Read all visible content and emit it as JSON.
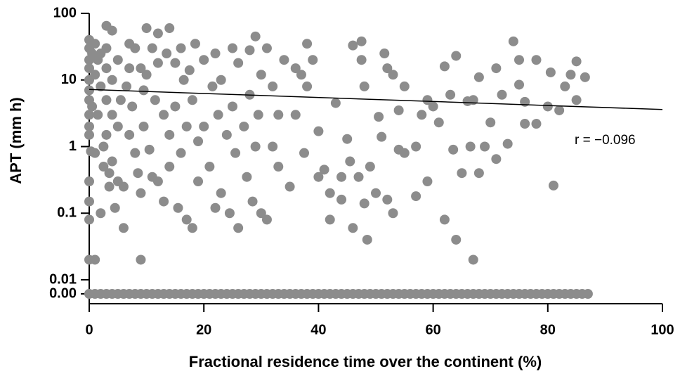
{
  "chart_data": {
    "type": "scatter",
    "x_label": "Fractional residence time over the continent (%)",
    "y_label": "APT (mm h)",
    "annotation": "r = −0.096",
    "log_y": true,
    "color": "#8c8c8c",
    "xlim": [
      0,
      100
    ],
    "xticks": [
      0,
      20,
      40,
      60,
      80,
      100
    ],
    "ylim": [
      0.01,
      100
    ],
    "yticks": [
      {
        "value": 0,
        "label": "0.00"
      },
      0.01,
      0.1,
      1,
      10,
      100
    ],
    "trend_line": {
      "x": [
        0,
        100
      ],
      "y": [
        7.2,
        3.6
      ]
    },
    "x": [
      0,
      0,
      0,
      0,
      0,
      0,
      0,
      0,
      0,
      0,
      0,
      0,
      0,
      0,
      0.3,
      0.5,
      0.5,
      1,
      1,
      1,
      1,
      1.5,
      1.5,
      2,
      2,
      2,
      2.5,
      2.5,
      3,
      3,
      3,
      3,
      3,
      3.5,
      3.5,
      4,
      4,
      4,
      4,
      4.5,
      5,
      5,
      5,
      5.5,
      6,
      6,
      6.5,
      7,
      7,
      7,
      7.5,
      8,
      8,
      8.5,
      9,
      9,
      9,
      9.5,
      9.5,
      10,
      10,
      10.5,
      11,
      11,
      11.5,
      12,
      12,
      12,
      13,
      13,
      13.5,
      14,
      14,
      14,
      15,
      15,
      15.5,
      16,
      16,
      16.5,
      17,
      17,
      17.5,
      18,
      18,
      18.5,
      19,
      19,
      20,
      20,
      21,
      21.5,
      22,
      22,
      22.5,
      23,
      23,
      24,
      24.5,
      25,
      25,
      25.5,
      26,
      26,
      27,
      27.5,
      28,
      28,
      28.5,
      29,
      29,
      29.5,
      30,
      30,
      31,
      31,
      32,
      32,
      33,
      33,
      34,
      35,
      36,
      36,
      37,
      37.5,
      38,
      38,
      39,
      40,
      40,
      41,
      42,
      42,
      43,
      44,
      44,
      45,
      45.5,
      46,
      46,
      47,
      47.5,
      47.5,
      48,
      48,
      48.5,
      49,
      50,
      50.5,
      51,
      51.5,
      52,
      52,
      53,
      53,
      54,
      54,
      55,
      55,
      57,
      57,
      58,
      59,
      59,
      60,
      61,
      62,
      62,
      63,
      63.5,
      64,
      64,
      65,
      66,
      66.5,
      67,
      67,
      68,
      68,
      69,
      70,
      71,
      71,
      72,
      73,
      74,
      75,
      75,
      76,
      76,
      78,
      78,
      80,
      80.5,
      81,
      82,
      83,
      84,
      85,
      85,
      86.5,
      0,
      1,
      2,
      3,
      4,
      5,
      6,
      7,
      8,
      9,
      10,
      11,
      12,
      13,
      14,
      15,
      16,
      17,
      18,
      19,
      20,
      21,
      22,
      23,
      24,
      25,
      26,
      27,
      28,
      29,
      30,
      31,
      32,
      33,
      34,
      35,
      36,
      37,
      38,
      39,
      40,
      41,
      42,
      43,
      44,
      45,
      46,
      47,
      48,
      49,
      50,
      51,
      52,
      53,
      54,
      55,
      56,
      57,
      58,
      59,
      60,
      61,
      62,
      63,
      64,
      65,
      66,
      67,
      68,
      69,
      70,
      71,
      72,
      73,
      74,
      75,
      76,
      77,
      78,
      79,
      80,
      81,
      82,
      83,
      84,
      85,
      86,
      87
    ],
    "y": [
      40,
      30,
      20,
      15,
      10,
      7,
      5,
      3,
      2,
      1.5,
      0.3,
      0.15,
      0.08,
      0.02,
      0.85,
      25,
      4,
      0.02,
      0.8,
      35,
      12,
      3,
      20,
      0.1,
      8,
      25,
      0.5,
      1,
      65,
      30,
      15,
      5,
      1.5,
      0.25,
      0.4,
      55,
      10,
      3,
      0.6,
      0.12,
      20,
      2,
      0.3,
      5,
      0.06,
      0.25,
      8,
      35,
      15,
      1.5,
      4,
      30,
      0.8,
      0.4,
      15,
      0.02,
      0.2,
      2,
      7,
      60,
      12,
      0.9,
      30,
      0.35,
      5,
      50,
      18,
      0.3,
      3,
      0.15,
      25,
      60,
      1.5,
      0.5,
      18,
      4,
      0.12,
      30,
      0.8,
      10,
      0.08,
      2,
      14,
      0.06,
      5,
      35,
      1.2,
      0.3,
      20,
      2,
      0.5,
      8,
      25,
      0.12,
      3,
      0.2,
      10,
      1.5,
      0.1,
      30,
      4,
      0.8,
      0.06,
      18,
      2,
      0.35,
      28,
      6,
      0.15,
      45,
      1,
      3,
      0.1,
      12,
      0.08,
      30,
      8,
      1,
      0.5,
      3,
      20,
      0.25,
      15,
      3,
      12,
      0.8,
      35,
      8,
      20,
      1.7,
      0.35,
      0.45,
      0.08,
      0.2,
      4.5,
      0.35,
      0.16,
      1.3,
      0.6,
      33,
      0.06,
      0.35,
      38,
      20,
      0.14,
      8,
      0.04,
      0.5,
      0.2,
      2.8,
      1.4,
      25,
      15,
      0.16,
      12,
      0.1,
      0.9,
      3.5,
      8,
      0.8,
      0.18,
      1,
      3,
      0.3,
      5,
      4,
      2.3,
      16,
      0.08,
      6,
      0.9,
      0.04,
      23,
      0.4,
      4.8,
      1,
      0.02,
      5,
      0.4,
      11,
      1,
      2.3,
      15,
      0.65,
      6,
      1.1,
      38,
      20,
      8.5,
      4.7,
      2.2,
      20,
      2.2,
      4,
      13,
      0.26,
      3.5,
      8,
      12,
      5,
      19,
      11,
      0,
      0,
      0,
      0,
      0,
      0,
      0,
      0,
      0,
      0,
      0,
      0,
      0,
      0,
      0,
      0,
      0,
      0,
      0,
      0,
      0,
      0,
      0,
      0,
      0,
      0,
      0,
      0,
      0,
      0,
      0,
      0,
      0,
      0,
      0,
      0,
      0,
      0,
      0,
      0,
      0,
      0,
      0,
      0,
      0,
      0,
      0,
      0,
      0,
      0,
      0,
      0,
      0,
      0,
      0,
      0,
      0,
      0,
      0,
      0,
      0,
      0,
      0,
      0,
      0,
      0,
      0,
      0,
      0,
      0,
      0,
      0,
      0,
      0,
      0,
      0,
      0,
      0,
      0,
      0,
      0,
      0,
      0,
      0,
      0,
      0,
      0,
      0
    ]
  }
}
